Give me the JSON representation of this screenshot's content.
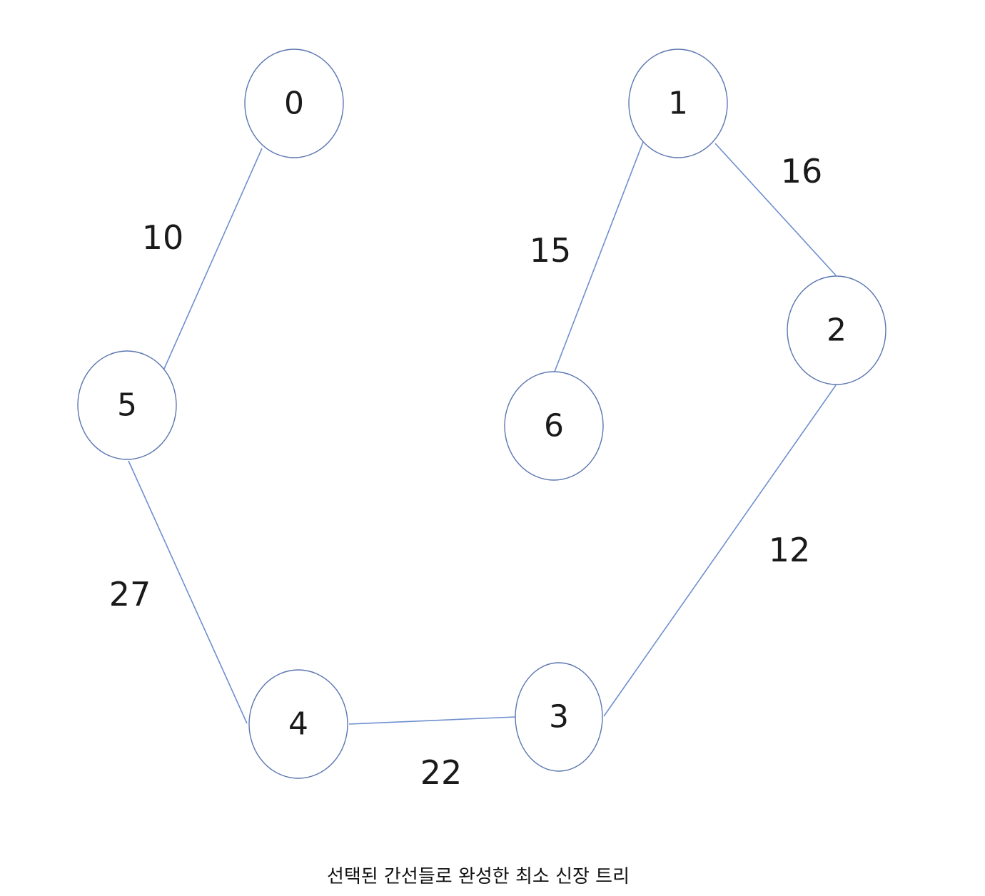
{
  "caption": "선택된 간선들로 완성한 최소 신장 트리",
  "colors": {
    "edge": "#6f8fcf",
    "node_stroke": "#5b76b0",
    "text": "#1a1a1a"
  },
  "nodes": [
    {
      "id": "0",
      "label": "0"
    },
    {
      "id": "1",
      "label": "1"
    },
    {
      "id": "2",
      "label": "2"
    },
    {
      "id": "3",
      "label": "3"
    },
    {
      "id": "4",
      "label": "4"
    },
    {
      "id": "5",
      "label": "5"
    },
    {
      "id": "6",
      "label": "6"
    }
  ],
  "edges": [
    {
      "from": "0",
      "to": "5",
      "weight": "10"
    },
    {
      "from": "5",
      "to": "4",
      "weight": "27"
    },
    {
      "from": "4",
      "to": "3",
      "weight": "22"
    },
    {
      "from": "3",
      "to": "2",
      "weight": "12"
    },
    {
      "from": "2",
      "to": "1",
      "weight": "16"
    },
    {
      "from": "1",
      "to": "6",
      "weight": "15"
    }
  ]
}
